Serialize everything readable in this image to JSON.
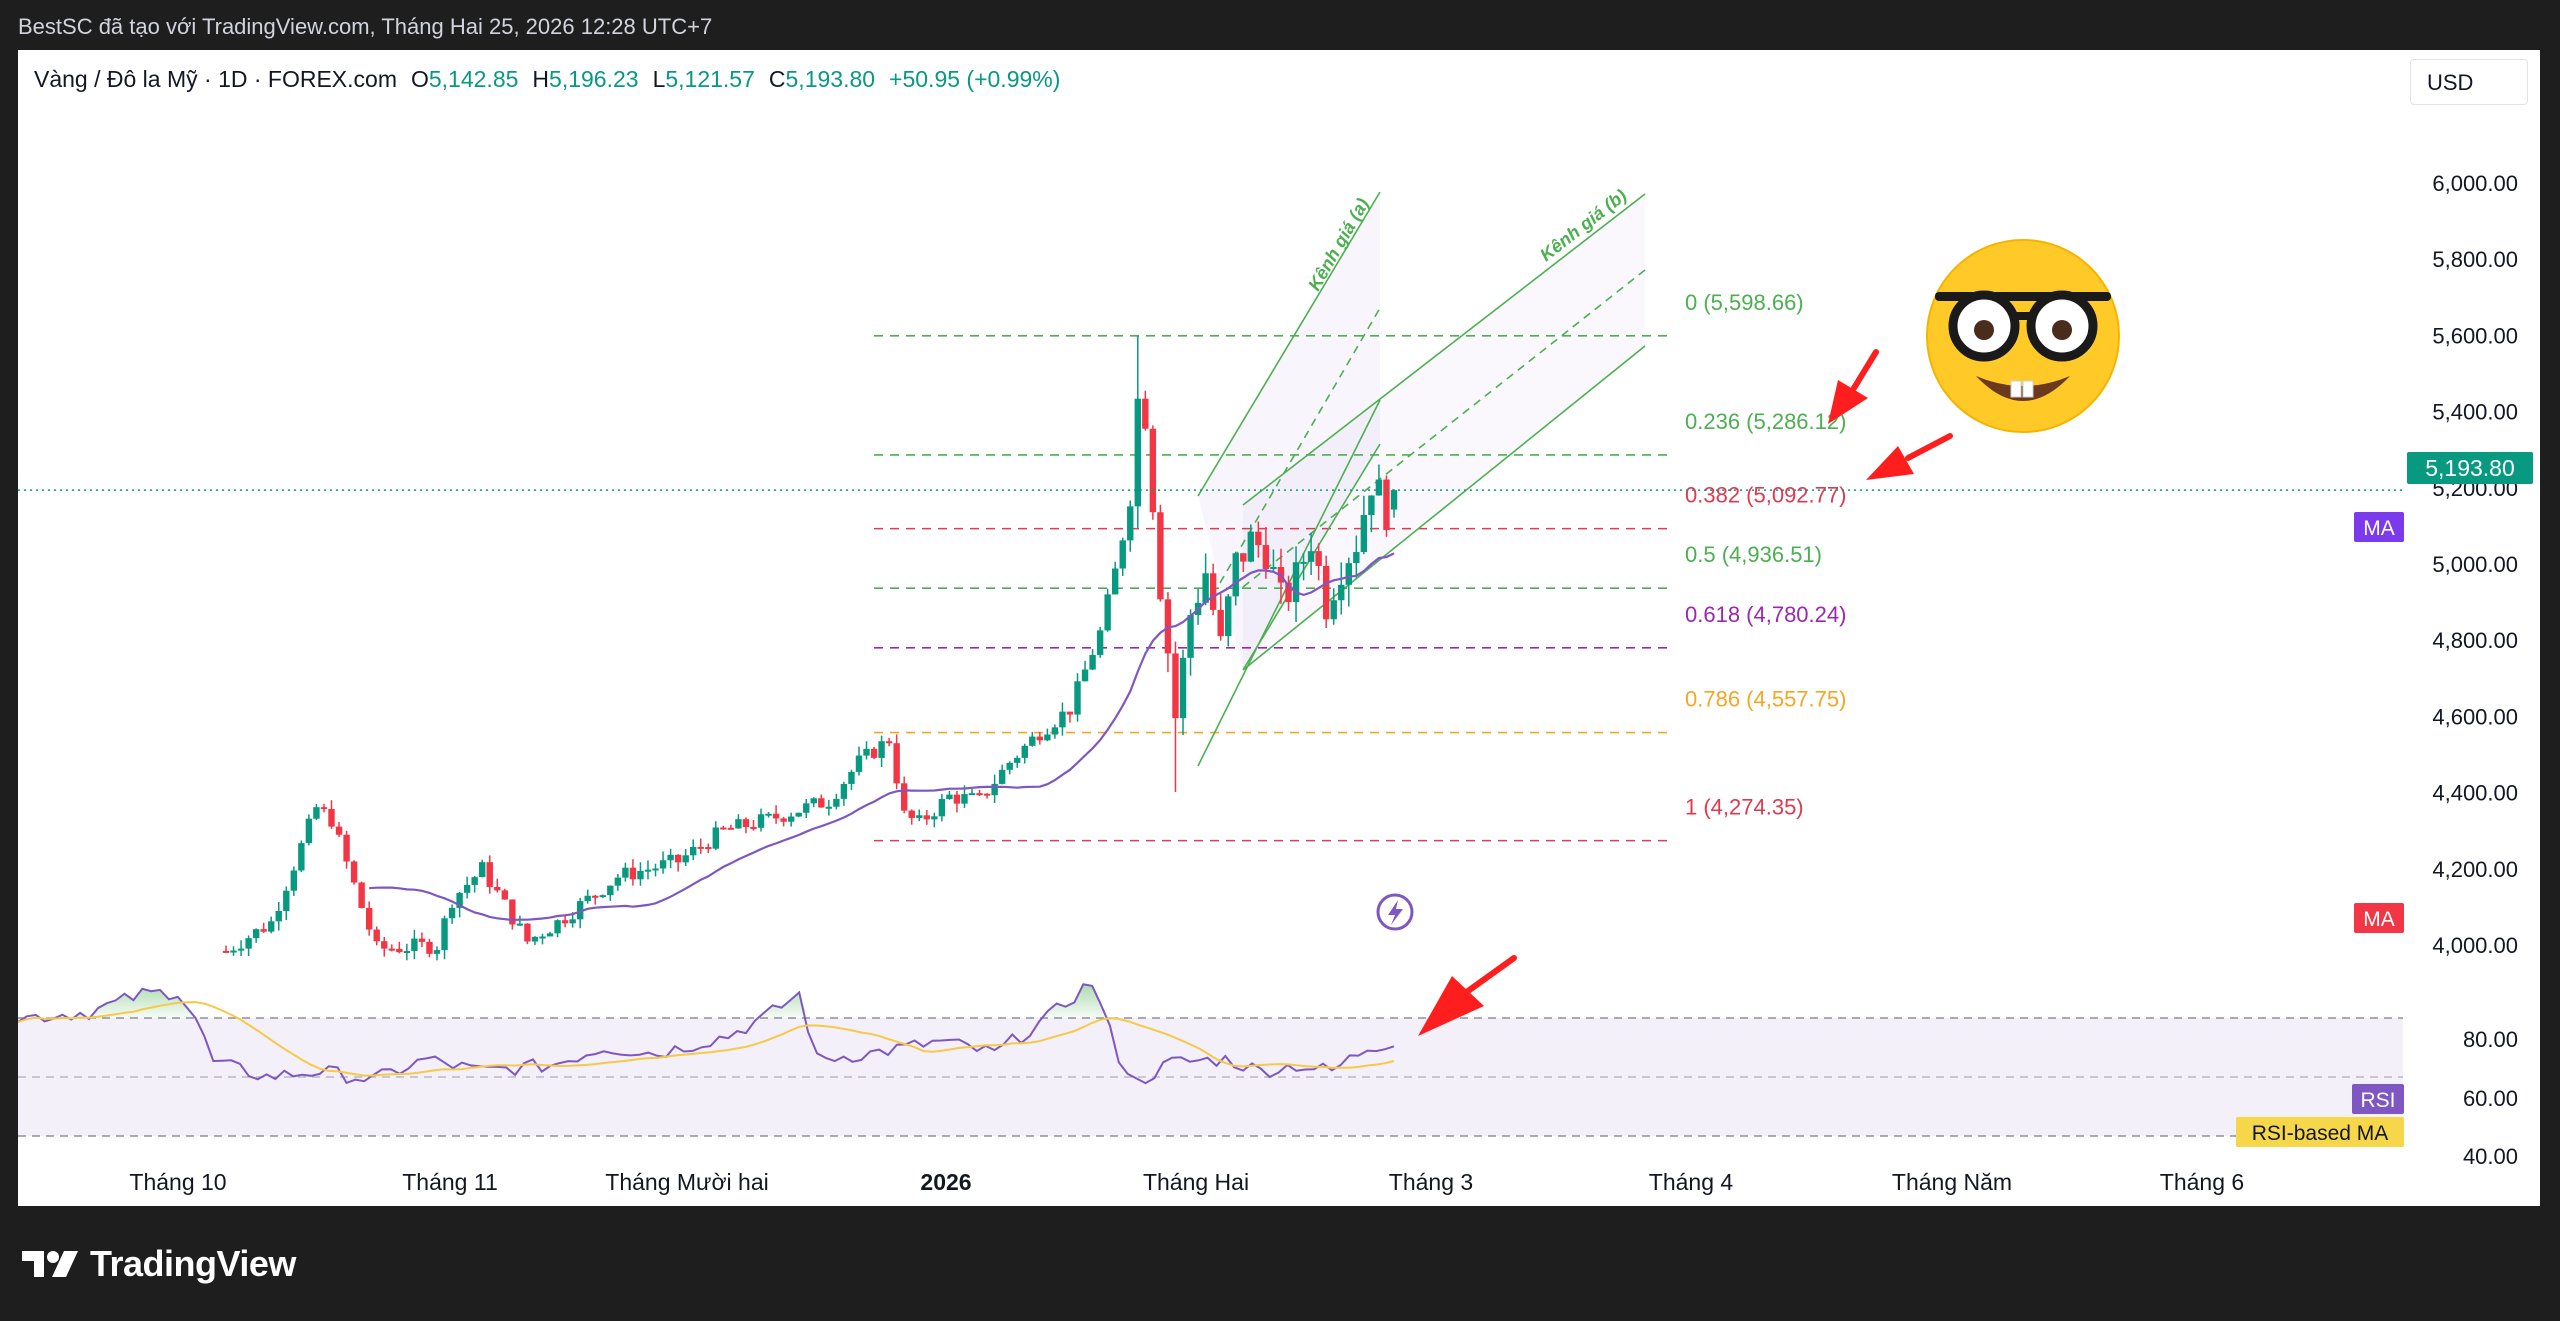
{
  "header": {
    "attribution": "BestSC đã tạo với TradingView.com, Tháng Hai 25, 2026 12:28 UTC+7"
  },
  "legend": {
    "symbol": "Vàng / Đô la Mỹ · 1D · FOREX.com",
    "open_label": "O",
    "open": "5,142.85",
    "high_label": "H",
    "high": "5,196.23",
    "low_label": "L",
    "low": "5,121.57",
    "close_label": "C",
    "close": "5,193.80",
    "change": "+50.95 (+0.99%)"
  },
  "currency_button": "USD",
  "price_axis": {
    "ticks": [
      "6,000.00",
      "5,800.00",
      "5,600.00",
      "5,400.00",
      "5,200.00",
      "5,000.00",
      "4,800.00",
      "4,600.00",
      "4,400.00",
      "4,200.00",
      "4,000.00"
    ],
    "tick_values": [
      6000,
      5800,
      5600,
      5400,
      5200,
      5000,
      4800,
      4600,
      4400,
      4200,
      4000
    ],
    "current_price_label": "5,193.80",
    "current_price": 5193.8,
    "ma_badge_upper": "MA",
    "ma_badge_lower": "MA"
  },
  "rsi_axis": {
    "ticks": [
      "80.00",
      "60.00",
      "40.00"
    ],
    "rsi_badge": "RSI",
    "rsi_ma_badge": "RSI-based MA"
  },
  "time_axis": {
    "labels": [
      "Tháng 10",
      "Tháng 11",
      "Tháng Mười hai",
      "2026",
      "Tháng Hai",
      "Tháng 3",
      "Tháng 4",
      "Tháng Năm",
      "Tháng 6"
    ]
  },
  "fibonacci": {
    "levels": [
      {
        "label": "0 (5,598.66)",
        "value": 5598.66,
        "color": "#4caf50"
      },
      {
        "label": "0.236 (5,286.12)",
        "value": 5286.12,
        "color": "#4caf50"
      },
      {
        "label": "0.382 (5,092.77)",
        "value": 5092.77,
        "color": "#e0394f"
      },
      {
        "label": "0.5 (4,936.51)",
        "value": 4936.51,
        "color": "#4caf50"
      },
      {
        "label": "0.618 (4,780.24)",
        "value": 4780.24,
        "color": "#9c27b0"
      },
      {
        "label": "0.786 (4,557.75)",
        "value": 4557.75,
        "color": "#f5a623"
      },
      {
        "label": "1 (4,274.35)",
        "value": 4274.35,
        "color": "#e0394f"
      }
    ]
  },
  "drawings": {
    "channel_a_label": "Kênh giá (a)",
    "channel_b_label": "Kênh giá (b)"
  },
  "colors": {
    "up": "#089981",
    "down": "#f23645",
    "ma": "#7e57c2",
    "rsi": "#7e57c2",
    "rsi_ma": "#f7c948",
    "channel": "#4caf50",
    "price_line": "#089981",
    "annotation_arrow": "#ff1e1e"
  },
  "icons": {
    "emoji": "nerd-face-icon",
    "alert": "lightning-alert-icon",
    "logo": "tradingview-logo-icon"
  },
  "footer": {
    "brand": "TradingView"
  }
}
